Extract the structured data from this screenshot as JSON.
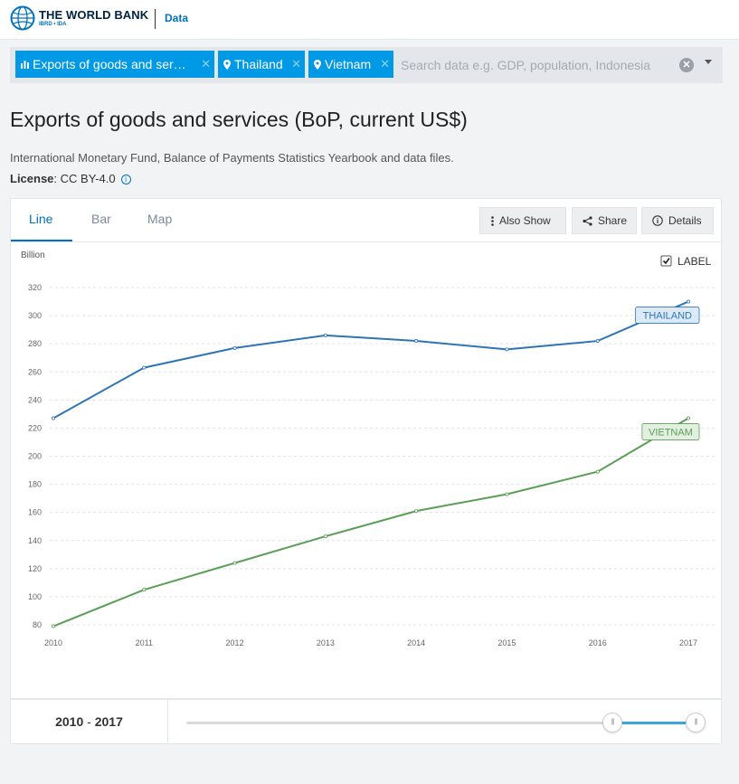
{
  "header": {
    "brand_title": "THE WORLD BANK",
    "brand_sub": "IBRD • IDA",
    "section": "Data"
  },
  "search": {
    "chips": [
      {
        "label": "Exports of goods and ser…",
        "icon": "bar-chart-icon"
      },
      {
        "label": "Thailand",
        "icon": "map-pin-icon"
      },
      {
        "label": "Vietnam",
        "icon": "map-pin-icon"
      }
    ],
    "placeholder": "Search data e.g. GDP, population, Indonesia"
  },
  "indicator": {
    "title": "Exports of goods and services (BoP, current US$)",
    "source": "International Monetary Fund, Balance of Payments Statistics Yearbook and data files.",
    "license_label": "License",
    "license_value": ": CC BY-4.0"
  },
  "tabs": {
    "line": "Line",
    "bar": "Bar",
    "map": "Map"
  },
  "toolbar": {
    "also_show": "Also Show",
    "share": "Share",
    "details": "Details"
  },
  "label_toggle": "LABEL",
  "range": {
    "start": "2010",
    "sep": "-",
    "end": "2017"
  },
  "colors": {
    "thailand": "#2e75b6",
    "vietnam": "#5b9e56",
    "accent": "#0071bc",
    "chip": "#0099e5"
  },
  "chart_data": {
    "type": "line",
    "title": "Exports of goods and services (BoP, current US$)",
    "ylabel": "Billion",
    "xlabel": "",
    "x": [
      2010,
      2011,
      2012,
      2013,
      2014,
      2015,
      2016,
      2017
    ],
    "ylim": [
      80,
      320
    ],
    "yticks": [
      80,
      100,
      120,
      140,
      160,
      180,
      200,
      220,
      240,
      260,
      280,
      300,
      320
    ],
    "grid": true,
    "series": [
      {
        "name": "Thailand",
        "label": "THAILAND",
        "values": [
          227,
          263,
          277,
          286,
          282,
          276,
          282,
          310
        ]
      },
      {
        "name": "Vietnam",
        "label": "VIETNAM",
        "values": [
          79,
          105,
          124,
          143,
          161,
          173,
          189,
          227
        ]
      }
    ]
  }
}
